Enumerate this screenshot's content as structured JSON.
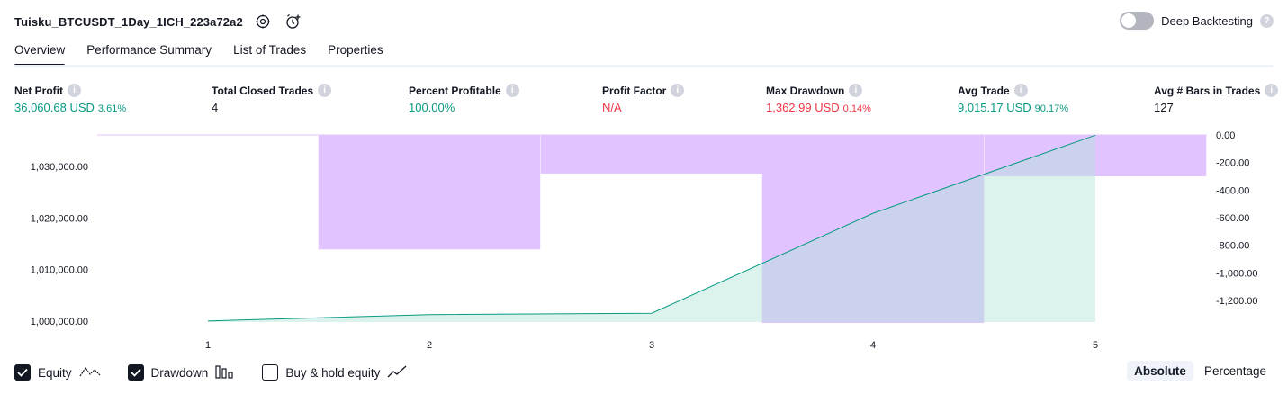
{
  "header": {
    "title": "Tuisku_BTCUSDT_1Day_1ICH_223a72a2",
    "icons": [
      "settings-icon",
      "add-alert-icon"
    ]
  },
  "deep_backtesting": {
    "label": "Deep Backtesting",
    "enabled": false,
    "help": "?"
  },
  "tabs": [
    {
      "label": "Overview",
      "active": true
    },
    {
      "label": "Performance Summary",
      "active": false
    },
    {
      "label": "List of Trades",
      "active": false
    },
    {
      "label": "Properties",
      "active": false
    }
  ],
  "metrics": [
    {
      "label": "Net Profit",
      "value": "36,060.68 USD",
      "pct": "3.61%",
      "color": "#089981"
    },
    {
      "label": "Total Closed Trades",
      "value": "4",
      "pct": "",
      "color": "#131722"
    },
    {
      "label": "Percent Profitable",
      "value": "100.00%",
      "pct": "",
      "color": "#089981"
    },
    {
      "label": "Profit Factor",
      "value": "N/A",
      "pct": "",
      "color": "#f23645"
    },
    {
      "label": "Max Drawdown",
      "value": "1,362.99 USD",
      "pct": "0.14%",
      "color": "#f23645"
    },
    {
      "label": "Avg Trade",
      "value": "9,015.17 USD",
      "pct": "90.17%",
      "color": "#089981"
    },
    {
      "label": "Avg # Bars in Trades",
      "value": "127",
      "pct": "",
      "color": "#131722"
    }
  ],
  "chart_data": {
    "type": "line",
    "x": [
      1,
      2,
      3,
      4,
      5
    ],
    "x_ticks": [
      "1",
      "2",
      "3",
      "4",
      "5"
    ],
    "left_axis": {
      "ticks": [
        "1,000,000.00",
        "1,010,000.00",
        "1,020,000.00",
        "1,030,000.00"
      ],
      "tick_values": [
        1000000,
        1010000,
        1020000,
        1030000
      ],
      "range": [
        999800,
        1036200
      ]
    },
    "right_axis": {
      "ticks": [
        "0.00",
        "-200.00",
        "-400.00",
        "-600.00",
        "-800.00",
        "-1,000.00",
        "-1,200.00"
      ],
      "tick_values": [
        0,
        -200,
        -400,
        -600,
        -800,
        -1000,
        -1200
      ],
      "range": [
        -1362.99,
        0
      ]
    },
    "series": [
      {
        "name": "Equity",
        "values": [
          1000000,
          1001250,
          1001500,
          1020900,
          1036060.68
        ],
        "color": "#089981"
      },
      {
        "name": "Drawdown",
        "values": [
          0,
          -830,
          -280,
          -1362.99,
          -300
        ],
        "color": "#d1b3ff"
      }
    ]
  },
  "legend": {
    "items": [
      {
        "label": "Equity",
        "checked": true,
        "icon": "equity-line-icon"
      },
      {
        "label": "Drawdown",
        "checked": true,
        "icon": "drawdown-bars-icon"
      },
      {
        "label": "Buy & hold equity",
        "checked": false,
        "icon": "buy-hold-line-icon"
      }
    ]
  },
  "mode": {
    "options": [
      "Absolute",
      "Percentage"
    ],
    "active": "Absolute"
  }
}
